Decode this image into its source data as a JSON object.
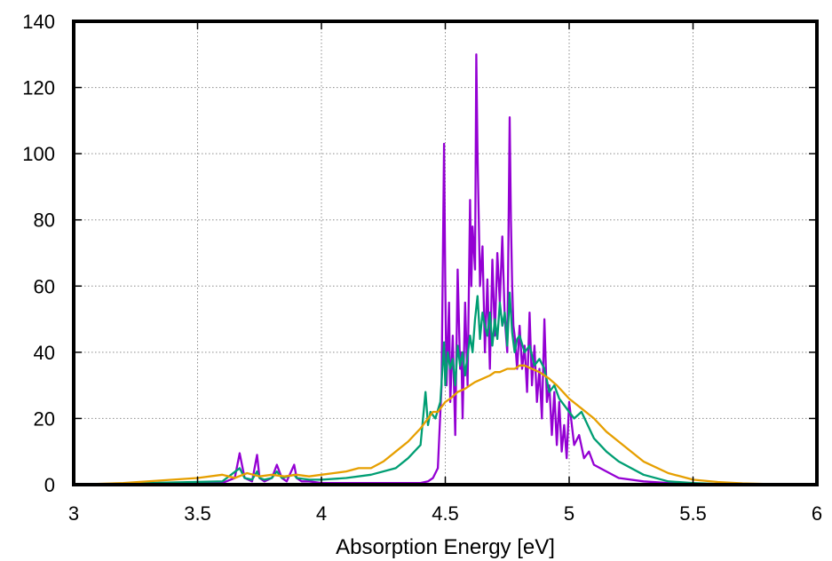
{
  "chart_data": {
    "type": "line",
    "title": "",
    "xlabel": "Absorption Energy [eV]",
    "ylabel": "",
    "xlim": [
      3,
      6
    ],
    "ylim": [
      0,
      140
    ],
    "xticks": [
      3,
      3.5,
      4,
      4.5,
      5,
      5.5,
      6
    ],
    "xtick_labels": [
      "3",
      "3.5",
      "4",
      "4.5",
      "5",
      "5.5",
      "6"
    ],
    "yticks": [
      0,
      20,
      40,
      60,
      80,
      100,
      120,
      140
    ],
    "ytick_labels": [
      "0",
      "20",
      "40",
      "60",
      "80",
      "100",
      "120",
      "140"
    ],
    "grid": true,
    "legend": "none",
    "series": [
      {
        "color": "#9400d3",
        "x": [
          3.0,
          3.3,
          3.6,
          3.65,
          3.67,
          3.69,
          3.72,
          3.74,
          3.75,
          3.77,
          3.8,
          3.82,
          3.84,
          3.86,
          3.89,
          3.9,
          3.92,
          3.95,
          4.0,
          4.1,
          4.2,
          4.3,
          4.4,
          4.43,
          4.45,
          4.47,
          4.485,
          4.495,
          4.5,
          4.505,
          4.515,
          4.52,
          4.53,
          4.54,
          4.55,
          4.56,
          4.565,
          4.57,
          4.58,
          4.59,
          4.6,
          4.605,
          4.61,
          4.62,
          4.625,
          4.63,
          4.64,
          4.65,
          4.66,
          4.67,
          4.68,
          4.69,
          4.7,
          4.71,
          4.72,
          4.73,
          4.74,
          4.75,
          4.76,
          4.765,
          4.77,
          4.775,
          4.78,
          4.79,
          4.8,
          4.81,
          4.82,
          4.83,
          4.84,
          4.85,
          4.86,
          4.87,
          4.88,
          4.89,
          4.9,
          4.91,
          4.92,
          4.93,
          4.94,
          4.95,
          4.96,
          4.97,
          4.98,
          4.99,
          5.0,
          5.02,
          5.04,
          5.06,
          5.08,
          5.1,
          5.15,
          5.2,
          5.3,
          5.4,
          5.5,
          6.0
        ],
        "y": [
          0,
          0.2,
          0.5,
          2,
          9.5,
          2,
          1,
          9,
          2,
          1,
          2,
          6,
          2,
          1,
          6,
          2,
          1,
          1,
          0.5,
          0.5,
          0.5,
          0.5,
          0.5,
          1,
          2,
          5,
          30,
          103,
          60,
          30,
          55,
          25,
          45,
          15,
          65,
          35,
          40,
          20,
          55,
          30,
          86,
          60,
          78,
          65,
          130,
          100,
          60,
          72,
          40,
          62,
          35,
          68,
          45,
          70,
          55,
          75,
          50,
          40,
          111,
          80,
          60,
          48,
          45,
          35,
          48,
          35,
          42,
          28,
          52,
          30,
          42,
          25,
          35,
          20,
          50,
          25,
          30,
          15,
          28,
          12,
          25,
          10,
          18,
          8,
          25,
          12,
          15,
          8,
          10,
          6,
          4,
          2,
          1,
          0.5,
          0.2,
          0
        ]
      },
      {
        "color": "#009e73",
        "x": [
          3.0,
          3.3,
          3.6,
          3.67,
          3.69,
          3.72,
          3.74,
          3.75,
          3.77,
          3.8,
          3.82,
          3.84,
          3.89,
          3.9,
          3.95,
          4.0,
          4.1,
          4.2,
          4.3,
          4.35,
          4.4,
          4.42,
          4.43,
          4.44,
          4.46,
          4.48,
          4.495,
          4.5,
          4.51,
          4.52,
          4.53,
          4.54,
          4.55,
          4.56,
          4.57,
          4.58,
          4.6,
          4.61,
          4.62,
          4.63,
          4.64,
          4.65,
          4.66,
          4.67,
          4.68,
          4.69,
          4.7,
          4.71,
          4.72,
          4.73,
          4.74,
          4.75,
          4.76,
          4.77,
          4.78,
          4.79,
          4.8,
          4.82,
          4.84,
          4.86,
          4.88,
          4.9,
          4.92,
          4.94,
          4.96,
          4.98,
          5.0,
          5.02,
          5.05,
          5.1,
          5.15,
          5.2,
          5.3,
          5.4,
          5.5,
          5.6,
          6.0
        ],
        "y": [
          0,
          0.5,
          1,
          5,
          2,
          1.5,
          4,
          2,
          1.5,
          2,
          4,
          2,
          3,
          2,
          1.5,
          1.5,
          2,
          3,
          5,
          8,
          12,
          28,
          18,
          22,
          20,
          25,
          43,
          30,
          40,
          35,
          38,
          30,
          42,
          36,
          40,
          33,
          45,
          40,
          50,
          57,
          44,
          52,
          48,
          45,
          52,
          42,
          50,
          44,
          55,
          48,
          52,
          42,
          58,
          46,
          40,
          44,
          45,
          40,
          42,
          36,
          38,
          35,
          28,
          30,
          26,
          24,
          22,
          20,
          22,
          14,
          10,
          7,
          3,
          1,
          0.5,
          0.2,
          0
        ]
      },
      {
        "color": "#e69f00",
        "x": [
          3.0,
          3.2,
          3.4,
          3.5,
          3.6,
          3.65,
          3.7,
          3.75,
          3.8,
          3.85,
          3.9,
          3.95,
          4.0,
          4.05,
          4.1,
          4.15,
          4.2,
          4.25,
          4.3,
          4.35,
          4.4,
          4.42,
          4.45,
          4.47,
          4.5,
          4.52,
          4.55,
          4.58,
          4.6,
          4.62,
          4.65,
          4.68,
          4.7,
          4.72,
          4.75,
          4.78,
          4.8,
          4.82,
          4.85,
          4.88,
          4.9,
          4.92,
          4.95,
          5.0,
          5.05,
          5.1,
          5.15,
          5.2,
          5.3,
          5.4,
          5.5,
          5.6,
          5.7,
          5.8,
          5.9,
          6.0
        ],
        "y": [
          0,
          0.5,
          1.5,
          2,
          3,
          2,
          3.5,
          2.5,
          3,
          2.5,
          3,
          2.5,
          3,
          3.5,
          4,
          5,
          5,
          7,
          10,
          13,
          17,
          19,
          22,
          22,
          25,
          26,
          28,
          29,
          30,
          31,
          32,
          33,
          34,
          34,
          35,
          35,
          36,
          36,
          35,
          34,
          33,
          32,
          30,
          26,
          23,
          20,
          16,
          13,
          7,
          3.5,
          1.5,
          0.8,
          0.4,
          0.2,
          0.1,
          0
        ]
      }
    ]
  }
}
